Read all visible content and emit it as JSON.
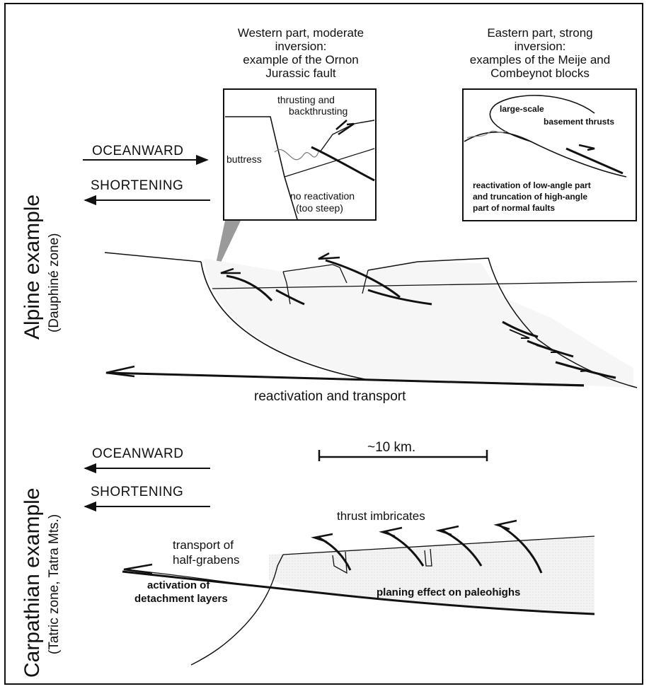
{
  "alpine": {
    "side_title": "Alpine example",
    "side_subtitle": "(Dauphiné zone)",
    "oceanward": "OCEANWARD",
    "shortening": "SHORTENING",
    "west": {
      "caption_lines": [
        "Western part, moderate",
        "inversion:",
        "example of the Ornon",
        "Jurassic fault"
      ],
      "thrusting_lines": [
        "thrusting and",
        "backthrusting"
      ],
      "buttress": "buttress",
      "no_reactivation_lines": [
        "no reactivation",
        "(too steep)"
      ]
    },
    "east": {
      "caption_lines": [
        "Eastern part, strong",
        "inversion:",
        "examples of the Meije and",
        "Combeynot blocks"
      ],
      "large_scale_lines": [
        "large-scale",
        "basement thrusts"
      ],
      "reactivation_lines": [
        "reactivation of low-angle part",
        "and truncation of high-angle",
        "part of normal faults"
      ]
    },
    "bottom_label": "reactivation and transport"
  },
  "scale": {
    "label": "~10 km."
  },
  "carpathian": {
    "side_title": "Carpathian example",
    "side_subtitle": "(Tatric zone, Tatra Mts.)",
    "oceanward": "OCEANWARD",
    "shortening": "SHORTENING",
    "thrust_imbricates": "thrust imbricates",
    "transport_lines": [
      "transport of",
      "half-grabens"
    ],
    "activation_lines": [
      "activation of",
      "detachment layers"
    ],
    "planing": "planing effect on paleohighs"
  }
}
